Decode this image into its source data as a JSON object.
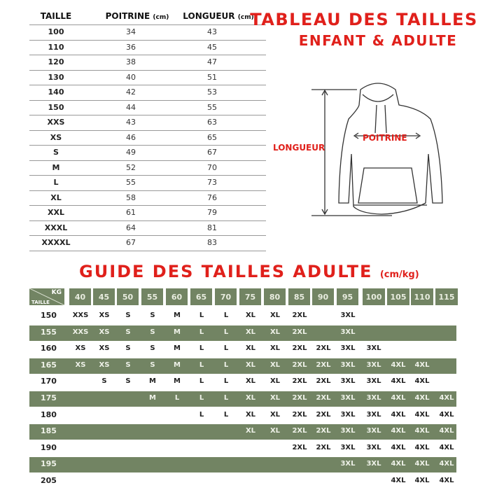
{
  "kids_table": {
    "headers": {
      "taille": "TAILLE",
      "poitrine": "POITRINE",
      "longueur": "LONGUEUR",
      "unit": "(cm)"
    },
    "rows": [
      [
        "100",
        "34",
        "43"
      ],
      [
        "110",
        "36",
        "45"
      ],
      [
        "120",
        "38",
        "47"
      ],
      [
        "130",
        "40",
        "51"
      ],
      [
        "140",
        "42",
        "53"
      ],
      [
        "150",
        "44",
        "55"
      ],
      [
        "XXS",
        "43",
        "63"
      ],
      [
        "XS",
        "46",
        "65"
      ],
      [
        "S",
        "49",
        "67"
      ],
      [
        "M",
        "52",
        "70"
      ],
      [
        "L",
        "55",
        "73"
      ],
      [
        "XL",
        "58",
        "76"
      ],
      [
        "XXL",
        "61",
        "79"
      ],
      [
        "XXXL",
        "64",
        "81"
      ],
      [
        "XXXXL",
        "67",
        "83"
      ]
    ]
  },
  "title_top": {
    "line1": "TABLEAU DES TAILLES",
    "line2": "ENFANT & ADULTE"
  },
  "diagram": {
    "length_label": "LONGUEUR",
    "chest_label": "POITRINE"
  },
  "adult_guide": {
    "title": "GUIDE DES TAILLES ADULTE",
    "unit": "(cm/kg)",
    "corner_kg": "KG",
    "corner_taille": "TAILLE",
    "weights": [
      "40",
      "45",
      "50",
      "55",
      "60",
      "65",
      "70",
      "75",
      "80",
      "85",
      "90",
      "95",
      "100",
      "105",
      "110",
      "115"
    ],
    "rows": [
      {
        "height": "150",
        "sizes": [
          "XXS",
          "XS",
          "S",
          "S",
          "M",
          "L",
          "L",
          "XL",
          "XL",
          "2XL",
          "",
          "3XL",
          "",
          "",
          "",
          ""
        ]
      },
      {
        "height": "155",
        "sizes": [
          "XXS",
          "XS",
          "S",
          "S",
          "M",
          "L",
          "L",
          "XL",
          "XL",
          "2XL",
          "",
          "3XL",
          "",
          "",
          "",
          ""
        ]
      },
      {
        "height": "160",
        "sizes": [
          "XS",
          "XS",
          "S",
          "S",
          "M",
          "L",
          "L",
          "XL",
          "XL",
          "2XL",
          "2XL",
          "3XL",
          "3XL",
          "",
          "",
          ""
        ]
      },
      {
        "height": "165",
        "sizes": [
          "XS",
          "XS",
          "S",
          "S",
          "M",
          "L",
          "L",
          "XL",
          "XL",
          "2XL",
          "2XL",
          "3XL",
          "3XL",
          "4XL",
          "4XL",
          ""
        ]
      },
      {
        "height": "170",
        "sizes": [
          "",
          "S",
          "S",
          "M",
          "M",
          "L",
          "L",
          "XL",
          "XL",
          "2XL",
          "2XL",
          "3XL",
          "3XL",
          "4XL",
          "4XL",
          ""
        ]
      },
      {
        "height": "175",
        "sizes": [
          "",
          "",
          "",
          "M",
          "L",
          "L",
          "L",
          "XL",
          "XL",
          "2XL",
          "2XL",
          "3XL",
          "3XL",
          "4XL",
          "4XL",
          "4XL"
        ]
      },
      {
        "height": "180",
        "sizes": [
          "",
          "",
          "",
          "",
          "",
          "L",
          "L",
          "XL",
          "XL",
          "2XL",
          "2XL",
          "3XL",
          "3XL",
          "4XL",
          "4XL",
          "4XL"
        ]
      },
      {
        "height": "185",
        "sizes": [
          "",
          "",
          "",
          "",
          "",
          "",
          "",
          "XL",
          "XL",
          "2XL",
          "2XL",
          "3XL",
          "3XL",
          "4XL",
          "4XL",
          "4XL"
        ]
      },
      {
        "height": "190",
        "sizes": [
          "",
          "",
          "",
          "",
          "",
          "",
          "",
          "",
          "",
          "2XL",
          "2XL",
          "3XL",
          "3XL",
          "4XL",
          "4XL",
          "4XL"
        ]
      },
      {
        "height": "195",
        "sizes": [
          "",
          "",
          "",
          "",
          "",
          "",
          "",
          "",
          "",
          "",
          "",
          "3XL",
          "3XL",
          "4XL",
          "4XL",
          "4XL"
        ]
      },
      {
        "height": "205",
        "sizes": [
          "",
          "",
          "",
          "",
          "",
          "",
          "",
          "",
          "",
          "",
          "",
          "",
          "",
          "4XL",
          "4XL",
          "4XL"
        ]
      }
    ]
  },
  "colors": {
    "accent_red": "#e0201b",
    "table_green": "#728463"
  }
}
